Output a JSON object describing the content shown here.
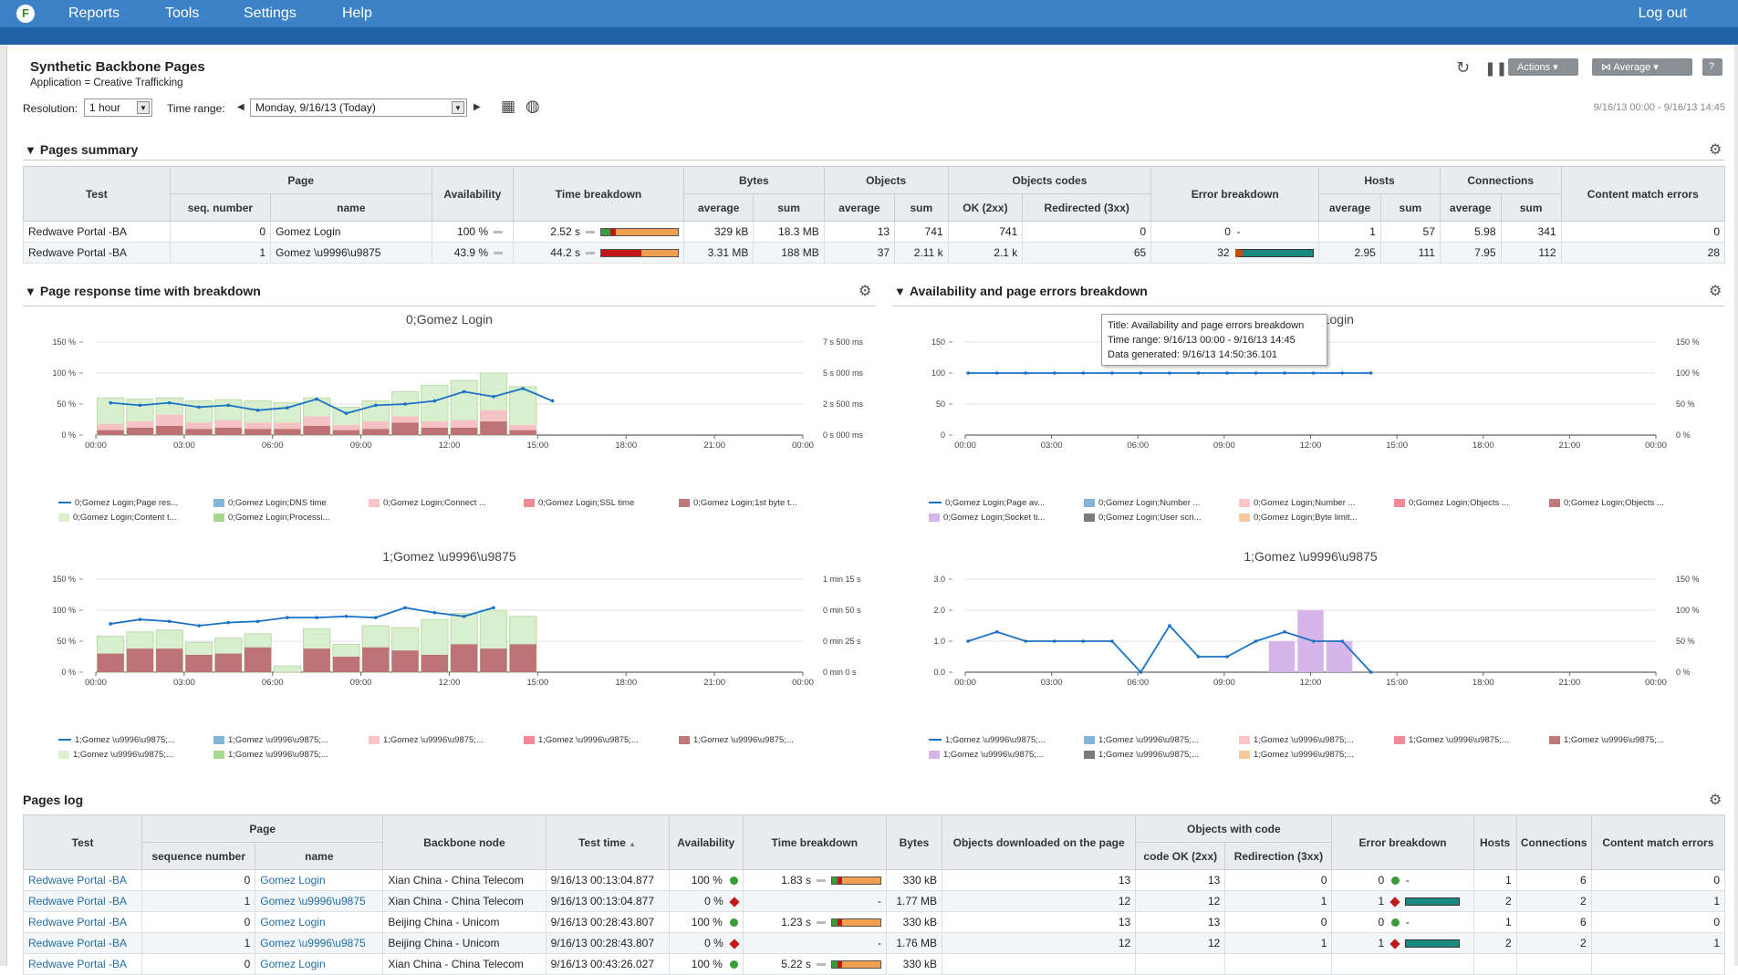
{
  "topbar": {
    "menu": [
      "Reports",
      "Tools",
      "Settings",
      "Help"
    ],
    "logout": "Log out",
    "logo": "F"
  },
  "header": {
    "title": "Synthetic Backbone Pages",
    "subtitle": "Application = Creative Trafficking",
    "resolution_label": "Resolution:",
    "resolution_value": "1 hour",
    "time_range_label": "Time range:",
    "time_range_value": "Monday, 9/16/13 (Today)",
    "date_range": "9/16/13 00:00 - 9/16/13 14:45",
    "actions_label": "Actions",
    "average_label": "Average",
    "help_label": "?"
  },
  "summary": {
    "title": "Pages summary",
    "headers": {
      "test": "Test",
      "page": "Page",
      "seq": "seq. number",
      "name": "name",
      "availability": "Availability",
      "time_breakdown": "Time breakdown",
      "bytes": "Bytes",
      "objects": "Objects",
      "objects_codes": "Objects codes",
      "error_breakdown": "Error breakdown",
      "hosts": "Hosts",
      "connections": "Connections",
      "content": "Content match errors",
      "average": "average",
      "sum": "sum",
      "ok": "OK (2xx)",
      "redirected": "Redirected (3xx)"
    },
    "rows": [
      {
        "test": "Redwave Portal -BA",
        "seq": "0",
        "name": "Gomez Login",
        "avail": "100 %",
        "time": "2.52 s",
        "bytes_avg": "329 kB",
        "bytes_sum": "18.3 MB",
        "obj_avg": "13",
        "obj_sum": "741",
        "ok": "741",
        "redir": "0",
        "err": "0",
        "err_extra": "-",
        "hosts_avg": "1",
        "hosts_sum": "57",
        "conn_avg": "5.98",
        "conn_sum": "341",
        "content": "0"
      },
      {
        "test": "Redwave Portal -BA",
        "seq": "1",
        "name": "Gomez \\u9996\\u9875",
        "avail": "43.9 %",
        "time": "44.2 s",
        "bytes_avg": "3.31 MB",
        "bytes_sum": "188 MB",
        "obj_avg": "37",
        "obj_sum": "2.11 k",
        "ok": "2.1 k",
        "redir": "65",
        "err": "32",
        "err_extra": "",
        "hosts_avg": "2.95",
        "hosts_sum": "111",
        "conn_avg": "7.95",
        "conn_sum": "112",
        "content": "28"
      }
    ]
  },
  "sections": {
    "response": "Page response time with breakdown",
    "availability": "Availability and page errors breakdown",
    "log": "Pages log"
  },
  "tooltip": {
    "title": "Title: Availability and page errors breakdown",
    "range": "Time range: 9/16/13 00:00 - 9/16/13 14:45",
    "generated": "Data generated: 9/16/13 14:50:36.101"
  },
  "chart_data": [
    {
      "type": "bar",
      "title": "0;Gomez Login",
      "x_ticks": [
        "00:00",
        "03:00",
        "06:00",
        "09:00",
        "12:00",
        "15:00",
        "18:00",
        "21:00",
        "00:00"
      ],
      "y_left_ticks": [
        "150 %",
        "100 %",
        "50 %",
        "0 %"
      ],
      "y_right_ticks": [
        "7 s 500 ms",
        "5 s 000 ms",
        "2 s 500 ms",
        "0 s 000 ms"
      ],
      "bars_total": [
        60,
        58,
        60,
        55,
        57,
        55,
        52,
        60,
        45,
        55,
        70,
        80,
        88,
        100,
        78
      ],
      "bars_red": [
        8,
        12,
        15,
        10,
        12,
        10,
        10,
        15,
        8,
        10,
        20,
        12,
        12,
        22,
        8
      ],
      "bars_pink": [
        10,
        10,
        18,
        10,
        12,
        10,
        10,
        15,
        8,
        12,
        10,
        10,
        12,
        18,
        8
      ],
      "line": [
        52,
        48,
        52,
        45,
        48,
        40,
        44,
        58,
        35,
        48,
        50,
        55,
        70,
        62,
        75,
        55
      ],
      "legend": [
        "0;Gomez Login;Page res...",
        "0;Gomez Login;DNS time",
        "0;Gomez Login;Connect ...",
        "0;Gomez Login;SSL time",
        "0;Gomez Login;1st byte t...",
        "0;Gomez Login;Content t...",
        "0;Gomez Login;Processi..."
      ]
    },
    {
      "type": "line",
      "title": "0;Gomez Login",
      "x_ticks": [
        "00:00",
        "03:00",
        "06:00",
        "09:00",
        "12:00",
        "15:00",
        "18:00",
        "21:00",
        "00:00"
      ],
      "y_left_ticks": [
        "150",
        "100",
        "50",
        "0"
      ],
      "y_right_ticks": [
        "150 %",
        "100 %",
        "50 %",
        "0 %"
      ],
      "line": [
        100,
        100,
        100,
        100,
        100,
        100,
        100,
        100,
        100,
        100,
        100,
        100,
        100,
        100,
        100
      ],
      "legend": [
        "0;Gomez Login;Page av...",
        "0;Gomez Login;Number ...",
        "0;Gomez Login;Number ...",
        "0;Gomez Login;Objects ...",
        "0;Gomez Login;Objects ...",
        "0;Gomez Login;Socket ti...",
        "0;Gomez Login;User scri...",
        "0;Gomez Login;Byte limit..."
      ]
    },
    {
      "type": "bar",
      "title": "1;Gomez \\u9996\\u9875",
      "x_ticks": [
        "00:00",
        "03:00",
        "06:00",
        "09:00",
        "12:00",
        "15:00",
        "18:00",
        "21:00",
        "00:00"
      ],
      "y_left_ticks": [
        "150 %",
        "100 %",
        "50 %",
        "0 %"
      ],
      "y_right_ticks": [
        "1 min 15 s",
        "0 min 50 s",
        "0 min 25 s",
        "0 min 0 s"
      ],
      "bars_total": [
        58,
        65,
        68,
        48,
        55,
        62,
        10,
        70,
        45,
        75,
        72,
        85,
        95,
        100,
        90
      ],
      "bars_red": [
        30,
        38,
        38,
        28,
        30,
        40,
        0,
        38,
        25,
        40,
        35,
        28,
        45,
        38,
        45
      ],
      "line": [
        78,
        85,
        82,
        75,
        80,
        82,
        88,
        88,
        90,
        88,
        104,
        96,
        90,
        104
      ],
      "legend": [
        "1;Gomez \\u9996\\u9875;...",
        "1;Gomez \\u9996\\u9875;...",
        "1;Gomez \\u9996\\u9875;...",
        "1;Gomez \\u9996\\u9875;...",
        "1;Gomez \\u9996\\u9875;...",
        "1;Gomez \\u9996\\u9875;...",
        "1;Gomez \\u9996\\u9875;..."
      ]
    },
    {
      "type": "line",
      "title": "1;Gomez \\u9996\\u9875",
      "x_ticks": [
        "00:00",
        "03:00",
        "06:00",
        "09:00",
        "12:00",
        "15:00",
        "18:00",
        "21:00",
        "00:00"
      ],
      "y_left_ticks": [
        "3.0",
        "2.0",
        "1.0",
        "0.0"
      ],
      "y_right_ticks": [
        "150 %",
        "100 %",
        "50 %",
        "0 %"
      ],
      "line": [
        1.0,
        1.3,
        1.0,
        1.0,
        1.0,
        1.0,
        0.0,
        1.5,
        0.5,
        0.5,
        1.0,
        1.3,
        1.0,
        1.0,
        0.0
      ],
      "bars_purple": [
        0,
        0,
        0,
        0,
        0,
        0,
        0,
        0,
        0,
        0,
        0,
        50,
        100,
        50
      ],
      "legend": [
        "1;Gomez \\u9996\\u9875;...",
        "1;Gomez \\u9996\\u9875;...",
        "1;Gomez \\u9996\\u9875;...",
        "1;Gomez \\u9996\\u9875;...",
        "1;Gomez \\u9996\\u9875;...",
        "1;Gomez \\u9996\\u9875;...",
        "1;Gomez \\u9996\\u9875;...",
        "1;Gomez \\u9996\\u9875;..."
      ]
    }
  ],
  "log": {
    "headers": {
      "test": "Test",
      "page": "Page",
      "seq": "sequence number",
      "name": "name",
      "node": "Backbone node",
      "time": "Test time",
      "avail": "Availability",
      "breakdown": "Time breakdown",
      "bytes": "Bytes",
      "objects": "Objects downloaded on the page",
      "with_code": "Objects with code",
      "ok": "code OK (2xx)",
      "redir": "Redirection (3xx)",
      "err": "Error breakdown",
      "hosts": "Hosts",
      "conn": "Connections",
      "content": "Content match errors"
    },
    "rows": [
      {
        "test": "Redwave Portal -BA",
        "seq": "0",
        "name": "Gomez Login",
        "node": "Xian China - China Telecom",
        "time": "9/16/13 00:13:04.877",
        "avail": "100 %",
        "ok_flag": true,
        "tb": "1.83 s",
        "bytes": "330 kB",
        "objs": "13",
        "code_ok": "13",
        "redir": "0",
        "err": "0",
        "hosts": "1",
        "conn": "6",
        "content": "0"
      },
      {
        "test": "Redwave Portal -BA",
        "seq": "1",
        "name": "Gomez \\u9996\\u9875",
        "node": "Xian China - China Telecom",
        "time": "9/16/13 00:13:04.877",
        "avail": "0 %",
        "ok_flag": false,
        "tb": "-",
        "bytes": "1.77 MB",
        "objs": "12",
        "code_ok": "12",
        "redir": "1",
        "err": "1",
        "hosts": "2",
        "conn": "2",
        "content": "1"
      },
      {
        "test": "Redwave Portal -BA",
        "seq": "0",
        "name": "Gomez Login",
        "node": "Beijing China - Unicom",
        "time": "9/16/13 00:28:43.807",
        "avail": "100 %",
        "ok_flag": true,
        "tb": "1.23 s",
        "bytes": "330 kB",
        "objs": "13",
        "code_ok": "13",
        "redir": "0",
        "err": "0",
        "hosts": "1",
        "conn": "6",
        "content": "0"
      },
      {
        "test": "Redwave Portal -BA",
        "seq": "1",
        "name": "Gomez \\u9996\\u9875",
        "node": "Beijing China - Unicom",
        "time": "9/16/13 00:28:43.807",
        "avail": "0 %",
        "ok_flag": false,
        "tb": "-",
        "bytes": "1.76 MB",
        "objs": "12",
        "code_ok": "12",
        "redir": "1",
        "err": "1",
        "hosts": "2",
        "conn": "2",
        "content": "1"
      },
      {
        "test": "Redwave Portal -BA",
        "seq": "0",
        "name": "Gomez Login",
        "node": "Xian China - China Telecom",
        "time": "9/16/13 00:43:26.027",
        "avail": "100 %",
        "ok_flag": true,
        "tb": "5.22 s",
        "bytes": "330 kB",
        "objs": "",
        "code_ok": "",
        "redir": "",
        "err": "",
        "hosts": "",
        "conn": "",
        "content": ""
      }
    ]
  }
}
